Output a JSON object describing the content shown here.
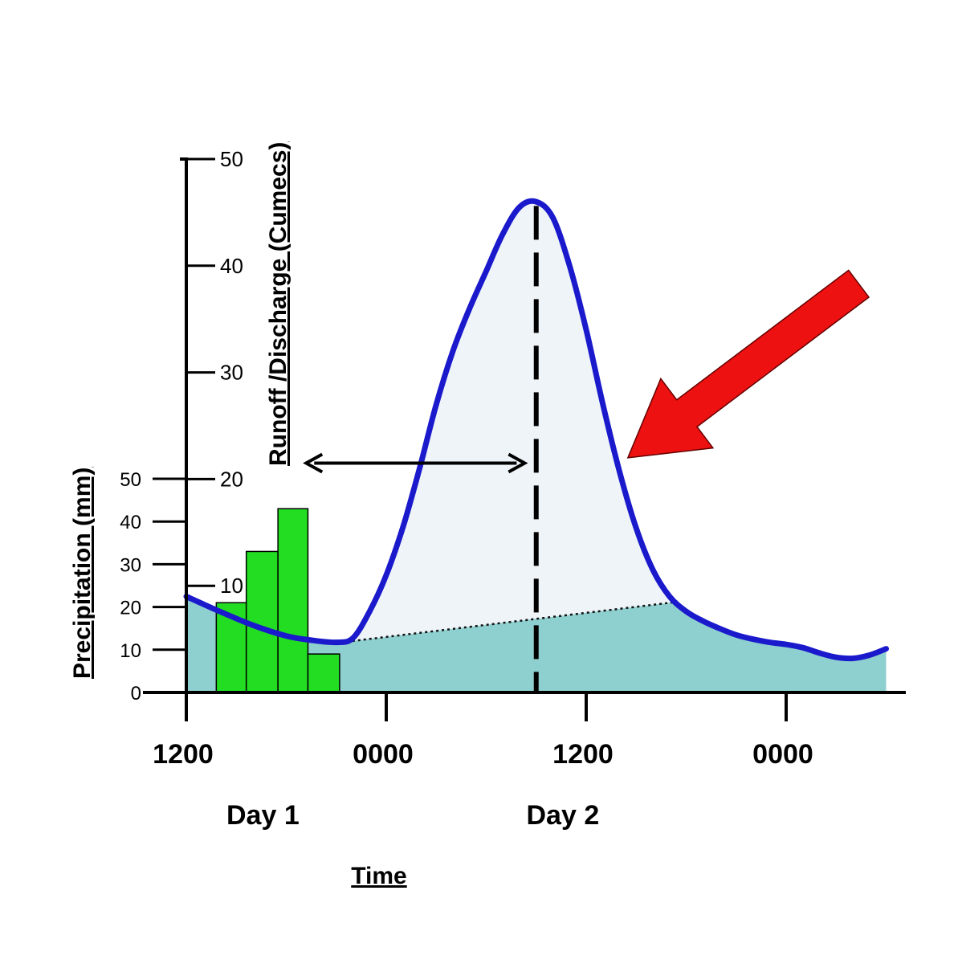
{
  "chart_data": {
    "type": "area",
    "title": "",
    "xlabel": "Time",
    "x_axis": {
      "unit": "hours since 1200 Day 1",
      "range": [
        0,
        42
      ],
      "ticks": [
        {
          "x": 0,
          "label": "1200"
        },
        {
          "x": 12,
          "label": "0000"
        },
        {
          "x": 24,
          "label": "1200"
        },
        {
          "x": 36,
          "label": "0000"
        }
      ],
      "day_labels": [
        {
          "x": 4.5,
          "label": "Day 1"
        },
        {
          "x": 22.5,
          "label": "Day 2"
        }
      ]
    },
    "discharge_axis": {
      "label": "Runoff /Discharge (Cumecs)",
      "range": [
        0,
        50
      ],
      "ticks": [
        10,
        20,
        30,
        40,
        50
      ]
    },
    "precipitation_axis": {
      "label": "Precipitation (mm)",
      "range": [
        0,
        50
      ],
      "ticks": [
        0,
        10,
        20,
        30,
        40,
        50
      ]
    },
    "series": [
      {
        "name": "",
        "type": "bar",
        "axis": "precipitation",
        "color": "#22dd22",
        "bars": [
          {
            "x0": 1.8,
            "x1": 3.6,
            "value": 21
          },
          {
            "x0": 3.6,
            "x1": 5.5,
            "value": 33
          },
          {
            "x0": 5.5,
            "x1": 7.3,
            "value": 43
          },
          {
            "x0": 7.3,
            "x1": 9.2,
            "value": 9
          }
        ]
      },
      {
        "name": "",
        "type": "line",
        "axis": "discharge",
        "color": "#1a1acc",
        "fill": "#eef4f8",
        "x": [
          0,
          2,
          4,
          6,
          7.5,
          9,
          10,
          11,
          12,
          13,
          14,
          15,
          16,
          17,
          18,
          19,
          20,
          21,
          22,
          23,
          24,
          25,
          26,
          27,
          28,
          29,
          30,
          31,
          32,
          33,
          34,
          35,
          36,
          37,
          38,
          39,
          40,
          41,
          42
        ],
        "y": [
          9.0,
          7.6,
          6.3,
          5.3,
          4.9,
          4.7,
          5.1,
          7.6,
          11.0,
          15.5,
          21.0,
          27.0,
          32.0,
          36.0,
          39.5,
          43.0,
          45.5,
          46.0,
          44.5,
          40.0,
          34.0,
          27.0,
          20.7,
          15.4,
          11.5,
          9.0,
          7.6,
          6.7,
          6.0,
          5.4,
          5.0,
          4.7,
          4.5,
          4.2,
          3.7,
          3.3,
          3.2,
          3.5,
          4.1
        ]
      },
      {
        "name": "",
        "type": "baseflow-separation",
        "axis": "discharge",
        "style": "dotted",
        "fill": "#8ecfcf",
        "x": [
          9.3,
          29.5
        ],
        "y": [
          4.7,
          8.5
        ]
      }
    ],
    "annotations": [
      {
        "type": "dashed-vertical-line",
        "x": 21.0
      },
      {
        "type": "double-arrow",
        "x0": 7.0,
        "x1": 20.5,
        "y": 21.5
      },
      {
        "type": "block-arrow",
        "color": "#ee1111",
        "points_to": {
          "x": 26.5,
          "y": 22
        }
      }
    ],
    "grid": false,
    "legend": "none"
  }
}
